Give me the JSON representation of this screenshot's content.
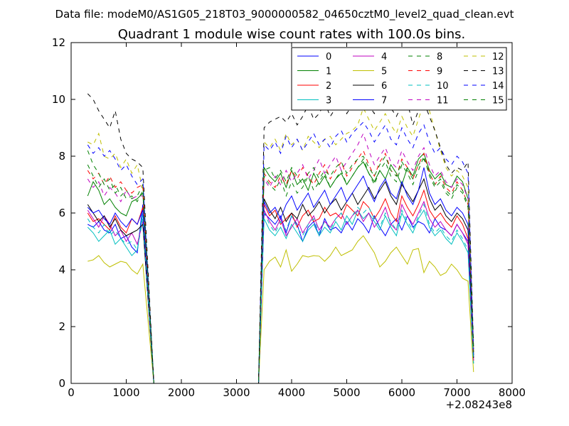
{
  "chart_data": {
    "type": "line",
    "suptitle": "Data file: modeM0/AS1G05_218T03_9000000582_04650cztM0_level2_quad_clean.evt",
    "title": "Quadrant 1 module wise count rates with 100.0s bins.",
    "xlabel": "",
    "ylabel": "",
    "x_offset_label": "+2.08243e8",
    "xlim": [
      0,
      8000
    ],
    "ylim": [
      0,
      12
    ],
    "xticks": [
      0,
      1000,
      2000,
      3000,
      4000,
      5000,
      6000,
      7000,
      8000
    ],
    "yticks": [
      0,
      2,
      4,
      6,
      8,
      10,
      12
    ],
    "legend_position": "top-right",
    "segments": {
      "seg1_x": [
        300,
        400,
        500,
        600,
        700,
        800,
        900,
        1000,
        1100,
        1200,
        1300
      ],
      "seg2_x": [
        3500,
        3600,
        3700,
        3800,
        3900,
        4000,
        4100,
        4200,
        4300,
        4400,
        4500,
        4600,
        4700,
        4800,
        4900,
        5000,
        5100,
        5200,
        5300,
        5400,
        5500,
        5600,
        5700,
        5800,
        5900,
        6000,
        6100,
        6200,
        6300,
        6400,
        6500,
        6600,
        6700,
        6800,
        6900,
        7000,
        7100,
        7200
      ],
      "zero_gap": [
        1500,
        3400
      ],
      "end_x": 7300
    },
    "series": [
      {
        "name": "0",
        "color": "#0000ff",
        "dash": "solid",
        "seg1": [
          5.6,
          5.5,
          5.7,
          5.4,
          5.3,
          5.6,
          5.1,
          5.2,
          4.8,
          4.6,
          6.3
        ],
        "seg2": [
          6.0,
          5.8,
          5.6,
          5.9,
          5.3,
          5.9,
          5.6,
          5.0,
          5.5,
          5.7,
          5.2,
          5.8,
          5.4,
          5.5,
          5.3,
          5.7,
          5.4,
          5.8,
          5.6,
          5.3,
          5.9,
          5.5,
          5.2,
          5.6,
          5.8,
          5.4,
          5.9,
          5.5,
          5.7,
          5.6,
          5.3,
          5.8,
          5.5,
          5.4,
          5.2,
          5.6,
          5.3,
          5.0
        ],
        "end": 0.9
      },
      {
        "name": "1",
        "color": "#008000",
        "dash": "solid",
        "seg1": [
          6.6,
          7.1,
          6.8,
          6.3,
          6.5,
          6.2,
          6.0,
          5.9,
          6.4,
          6.5,
          6.7
        ],
        "seg2": [
          7.6,
          7.3,
          7.1,
          7.4,
          6.9,
          7.5,
          7.0,
          7.2,
          6.8,
          7.4,
          7.0,
          7.3,
          6.9,
          7.2,
          7.4,
          7.0,
          7.3,
          7.6,
          7.8,
          7.4,
          7.1,
          7.5,
          7.2,
          7.7,
          7.4,
          7.0,
          7.6,
          7.3,
          7.9,
          8.1,
          7.5,
          7.2,
          7.4,
          7.0,
          6.9,
          7.3,
          7.1,
          6.5
        ],
        "end": 1.0
      },
      {
        "name": "2",
        "color": "#ff0000",
        "dash": "solid",
        "seg1": [
          6.0,
          5.7,
          5.8,
          5.6,
          5.4,
          5.9,
          5.5,
          5.3,
          5.8,
          5.6,
          6.2
        ],
        "seg2": [
          6.3,
          5.9,
          6.1,
          5.6,
          5.8,
          6.0,
          5.5,
          5.9,
          6.1,
          5.7,
          5.8,
          6.2,
          5.9,
          6.0,
          5.8,
          6.3,
          6.1,
          5.9,
          6.4,
          6.2,
          5.8,
          6.1,
          6.5,
          6.0,
          5.7,
          6.6,
          6.2,
          5.9,
          6.3,
          6.8,
          6.1,
          5.8,
          6.0,
          5.7,
          5.5,
          5.9,
          5.6,
          5.1
        ],
        "end": 0.8
      },
      {
        "name": "3",
        "color": "#00bfbf",
        "dash": "solid",
        "seg1": [
          5.5,
          5.3,
          5.0,
          5.2,
          5.4,
          4.9,
          5.1,
          4.8,
          4.5,
          4.7,
          6.0
        ],
        "seg2": [
          5.8,
          5.4,
          5.2,
          5.5,
          5.1,
          5.6,
          5.3,
          5.0,
          5.4,
          5.6,
          5.2,
          5.5,
          5.3,
          5.7,
          5.4,
          5.9,
          5.6,
          6.1,
          5.8,
          6.0,
          5.7,
          5.4,
          5.9,
          5.5,
          5.2,
          6.0,
          5.6,
          5.3,
          5.8,
          6.1,
          5.5,
          5.2,
          5.4,
          5.1,
          4.9,
          5.3,
          5.0,
          4.6
        ],
        "end": 0.7
      },
      {
        "name": "4",
        "color": "#bf00bf",
        "dash": "solid",
        "seg1": [
          6.1,
          5.8,
          5.5,
          5.9,
          5.6,
          5.2,
          5.4,
          5.0,
          5.3,
          4.9,
          5.7
        ],
        "seg2": [
          6.1,
          5.7,
          5.4,
          5.8,
          5.2,
          5.5,
          5.8,
          5.3,
          5.6,
          5.9,
          5.4,
          5.7,
          5.5,
          5.8,
          6.0,
          5.6,
          5.9,
          6.1,
          5.7,
          6.0,
          5.5,
          5.8,
          6.2,
          5.6,
          5.4,
          6.3,
          5.9,
          5.6,
          6.0,
          6.4,
          5.8,
          5.5,
          5.7,
          5.4,
          5.2,
          5.6,
          5.3,
          4.9
        ],
        "end": 0.8
      },
      {
        "name": "5",
        "color": "#bfbf00",
        "dash": "solid",
        "seg1": [
          4.3,
          4.35,
          4.5,
          4.25,
          4.1,
          4.2,
          4.3,
          4.25,
          4.0,
          3.85,
          4.2
        ],
        "seg2": [
          4.0,
          4.3,
          4.45,
          4.1,
          4.7,
          3.95,
          4.2,
          4.5,
          4.45,
          4.5,
          4.48,
          4.3,
          4.5,
          4.8,
          4.5,
          4.6,
          4.7,
          5.0,
          5.2,
          4.9,
          4.6,
          4.1,
          4.3,
          4.6,
          4.8,
          4.5,
          4.2,
          4.7,
          4.75,
          3.9,
          4.3,
          4.1,
          3.8,
          3.9,
          4.2,
          4.0,
          3.7,
          3.6
        ],
        "end": 0.4
      },
      {
        "name": "6",
        "color": "#000000",
        "dash": "solid",
        "seg1": [
          6.3,
          6.0,
          5.7,
          5.9,
          5.5,
          5.8,
          5.4,
          5.2,
          5.3,
          5.4,
          5.6
        ],
        "seg2": [
          6.5,
          6.1,
          5.8,
          6.2,
          5.7,
          6.0,
          5.8,
          6.3,
          5.9,
          6.1,
          6.4,
          6.0,
          6.3,
          6.5,
          6.1,
          6.4,
          6.7,
          6.3,
          6.6,
          6.9,
          6.5,
          6.8,
          7.1,
          6.6,
          6.3,
          7.0,
          6.7,
          6.4,
          6.8,
          7.2,
          6.5,
          6.1,
          6.3,
          5.9,
          5.7,
          6.0,
          5.8,
          5.4
        ],
        "end": 0.9
      },
      {
        "name": "7",
        "color": "#0000ff",
        "dash": "solid",
        "seg1": [
          6.2,
          6.0,
          6.1,
          5.8,
          5.6,
          6.0,
          5.7,
          5.5,
          5.8,
          5.6,
          6.1
        ],
        "seg2": [
          6.4,
          6.0,
          6.2,
          5.8,
          6.3,
          6.6,
          6.1,
          6.4,
          6.7,
          6.2,
          6.5,
          6.8,
          6.3,
          6.6,
          6.9,
          6.4,
          6.7,
          7.0,
          7.3,
          6.8,
          6.4,
          6.9,
          7.2,
          6.7,
          6.5,
          7.1,
          6.6,
          6.3,
          6.8,
          7.6,
          6.7,
          6.3,
          6.5,
          6.1,
          5.9,
          6.2,
          6.0,
          5.6
        ],
        "end": 1.0
      },
      {
        "name": "8",
        "color": "#008000",
        "dash": "dashed",
        "seg1": [
          7.7,
          7.3,
          6.9,
          7.2,
          6.8,
          7.0,
          6.6,
          6.8,
          6.5,
          6.6,
          7.0
        ],
        "seg2": [
          7.3,
          7.0,
          6.8,
          7.2,
          6.6,
          7.1,
          6.7,
          6.9,
          7.3,
          6.8,
          7.1,
          7.4,
          6.9,
          7.2,
          7.5,
          7.0,
          7.3,
          7.6,
          7.9,
          7.4,
          7.0,
          7.5,
          7.8,
          7.3,
          7.1,
          7.7,
          7.4,
          7.0,
          7.5,
          8.0,
          7.3,
          6.9,
          7.1,
          6.7,
          6.5,
          6.9,
          6.7,
          6.2
        ],
        "end": 1.1
      },
      {
        "name": "9",
        "color": "#ff0000",
        "dash": "dashed",
        "seg1": [
          7.5,
          7.2,
          7.4,
          7.0,
          7.3,
          6.9,
          7.1,
          6.8,
          6.7,
          6.9,
          7.0
        ],
        "seg2": [
          7.4,
          7.1,
          6.9,
          7.3,
          7.0,
          7.5,
          7.2,
          7.6,
          7.3,
          7.0,
          7.4,
          7.7,
          7.2,
          7.5,
          7.8,
          7.3,
          7.6,
          7.9,
          8.2,
          7.7,
          7.3,
          7.8,
          8.1,
          7.5,
          7.3,
          7.9,
          7.6,
          7.2,
          7.7,
          8.1,
          7.4,
          7.0,
          7.3,
          6.9,
          6.7,
          7.1,
          6.8,
          6.3
        ],
        "end": 1.1
      },
      {
        "name": "10",
        "color": "#00bfbf",
        "dash": "dashed",
        "seg1": [
          5.8,
          5.5,
          5.3,
          5.6,
          5.2,
          5.4,
          5.1,
          4.9,
          5.0,
          4.7,
          5.8
        ],
        "seg2": [
          6.0,
          5.6,
          5.3,
          5.7,
          5.4,
          5.9,
          5.5,
          5.2,
          5.6,
          5.8,
          5.3,
          5.7,
          5.4,
          5.8,
          6.0,
          5.6,
          5.9,
          6.2,
          6.0,
          6.2,
          5.8,
          5.5,
          6.0,
          5.7,
          5.4,
          6.1,
          5.7,
          5.4,
          5.9,
          6.3,
          5.6,
          5.3,
          5.5,
          5.2,
          5.0,
          5.4,
          5.1,
          4.7
        ],
        "end": 0.7
      },
      {
        "name": "11",
        "color": "#bf00bf",
        "dash": "dashed",
        "seg1": [
          7.2,
          6.9,
          7.1,
          6.6,
          6.9,
          6.7,
          6.4,
          6.8,
          6.5,
          6.6,
          6.6
        ],
        "seg2": [
          7.2,
          6.9,
          7.3,
          7.0,
          7.5,
          7.1,
          7.4,
          7.7,
          7.2,
          7.5,
          7.9,
          7.4,
          7.7,
          8.0,
          7.5,
          7.8,
          8.1,
          8.4,
          8.8,
          8.2,
          7.7,
          8.0,
          8.3,
          7.8,
          7.6,
          8.2,
          7.8,
          7.5,
          8.0,
          8.3,
          7.7,
          7.3,
          7.5,
          7.1,
          6.9,
          7.2,
          7.0,
          6.5
        ],
        "end": 1.1
      },
      {
        "name": "12",
        "color": "#bfbf00",
        "dash": "dashed",
        "seg1": [
          8.5,
          8.4,
          8.8,
          8.0,
          7.9,
          8.1,
          7.6,
          7.9,
          7.4,
          7.7,
          6.8
        ],
        "seg2": [
          8.5,
          8.3,
          8.6,
          8.2,
          8.8,
          8.4,
          8.6,
          8.2,
          8.7,
          8.5,
          8.3,
          8.6,
          8.7,
          8.4,
          8.6,
          8.8,
          8.9,
          9.1,
          9.7,
          9.3,
          8.9,
          9.2,
          9.5,
          9.1,
          8.8,
          9.4,
          9.0,
          8.7,
          9.3,
          9.9,
          9.6,
          8.9,
          8.2,
          7.6,
          7.3,
          7.5,
          7.3,
          6.9
        ],
        "end": 1.2
      },
      {
        "name": "13",
        "color": "#000000",
        "dash": "dashed",
        "seg1": [
          10.2,
          10.0,
          9.6,
          9.3,
          9.0,
          9.6,
          8.6,
          8.1,
          7.9,
          7.8,
          7.6
        ],
        "seg2": [
          9.0,
          9.2,
          9.3,
          9.4,
          9.2,
          9.5,
          9.1,
          9.4,
          9.8,
          9.3,
          9.5,
          9.9,
          9.4,
          9.7,
          10.0,
          9.5,
          9.8,
          10.1,
          10.3,
          9.8,
          9.5,
          9.9,
          10.2,
          9.7,
          9.4,
          9.8,
          9.9,
          9.1,
          9.6,
          9.9,
          9.4,
          8.9,
          8.3,
          7.7,
          7.4,
          7.6,
          7.5,
          7.8
        ],
        "end": 1.3
      },
      {
        "name": "14",
        "color": "#0000ff",
        "dash": "dashed",
        "seg1": [
          8.4,
          8.1,
          8.3,
          8.0,
          8.2,
          7.9,
          7.5,
          7.7,
          7.3,
          7.0,
          7.2
        ],
        "seg2": [
          8.4,
          8.2,
          8.5,
          8.1,
          8.7,
          8.3,
          8.6,
          8.2,
          8.5,
          8.8,
          8.4,
          8.6,
          8.3,
          8.7,
          8.9,
          8.5,
          8.8,
          9.0,
          9.2,
          8.9,
          8.5,
          8.8,
          9.1,
          8.6,
          8.4,
          9.0,
          8.6,
          8.3,
          8.8,
          9.1,
          8.5,
          8.1,
          8.3,
          7.9,
          7.7,
          8.0,
          7.8,
          7.4
        ],
        "end": 1.2
      },
      {
        "name": "15",
        "color": "#008000",
        "dash": "dashed",
        "seg1": [
          8.2,
          7.7,
          7.4,
          7.0,
          7.2,
          6.7,
          6.9,
          6.5,
          6.6,
          6.4,
          6.8
        ],
        "seg2": [
          7.5,
          7.6,
          7.2,
          7.5,
          7.1,
          7.6,
          7.3,
          7.0,
          7.4,
          7.6,
          7.2,
          7.5,
          7.3,
          7.6,
          7.8,
          7.4,
          7.7,
          7.9,
          8.0,
          7.6,
          7.3,
          7.7,
          8.0,
          7.5,
          7.3,
          7.8,
          7.5,
          7.2,
          7.7,
          7.9,
          7.4,
          7.0,
          7.2,
          6.8,
          6.6,
          7.0,
          6.8,
          6.3
        ],
        "end": 1.1
      }
    ]
  }
}
